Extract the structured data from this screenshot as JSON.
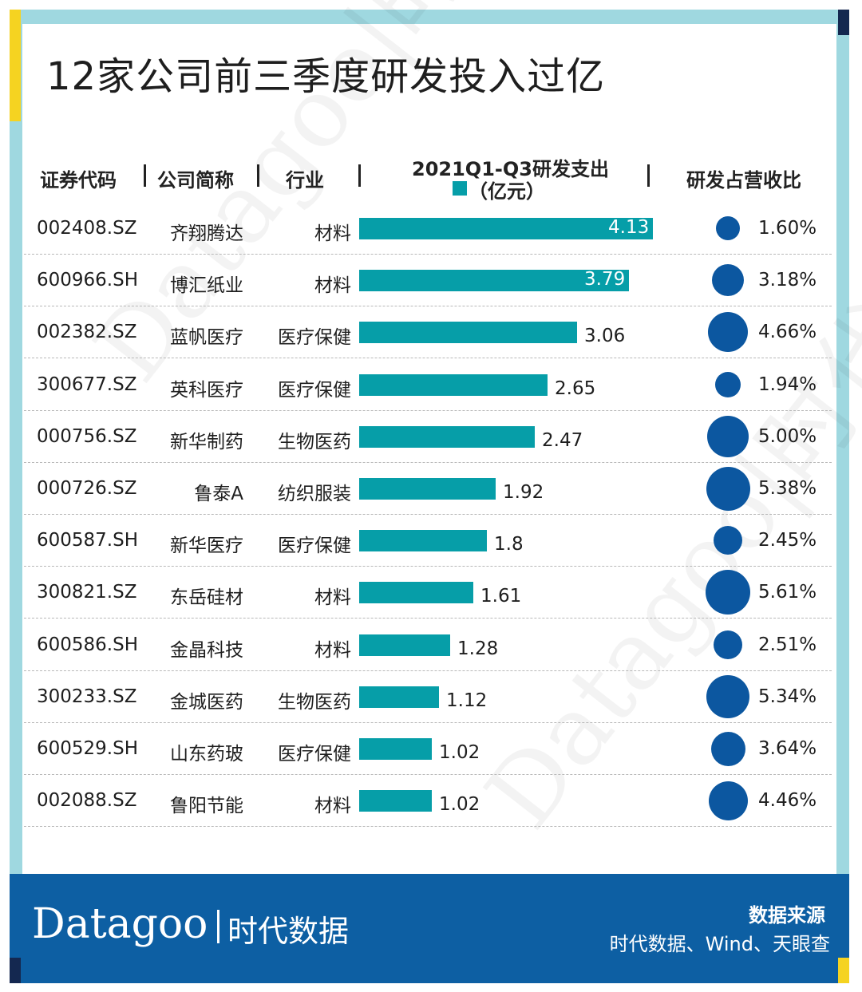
{
  "title": "12家公司前三季度研发投入过亿",
  "colors": {
    "bar": "#069ea8",
    "dot": "#0c57a0",
    "frame": "#9fd8e0",
    "footer": "#0d5fa3",
    "accent_yellow": "#f5d321",
    "accent_navy": "#142850"
  },
  "header": {
    "code": "证券代码",
    "name": "公司简称",
    "industry": "行业",
    "spend_title": "2021Q1-Q3研发支出",
    "spend_unit": "（亿元）",
    "ratio": "研发占营收比"
  },
  "chart_data": {
    "type": "bar",
    "title": "12家公司前三季度研发投入过亿",
    "series_name": "2021Q1-Q3研发支出（亿元）",
    "categories": [
      "齐翔腾达",
      "博汇纸业",
      "蓝帆医疗",
      "英科医疗",
      "新华制药",
      "鲁泰A",
      "新华医疗",
      "东岳硅材",
      "金晶科技",
      "金城医药",
      "山东药玻",
      "鲁阳节能"
    ],
    "values": [
      4.13,
      3.79,
      3.06,
      2.65,
      2.47,
      1.92,
      1.8,
      1.61,
      1.28,
      1.12,
      1.02,
      1.02
    ],
    "ylim": [
      0,
      4.13
    ],
    "secondary_series": {
      "name": "研发占营收比",
      "values": [
        1.6,
        3.18,
        4.66,
        1.94,
        5.0,
        5.38,
        2.45,
        5.61,
        2.51,
        5.34,
        3.64,
        4.46
      ],
      "unit": "%"
    }
  },
  "rows": [
    {
      "code": "002408.SZ",
      "name": "齐翔腾达",
      "industry": "材料",
      "value": "4.13",
      "ratio": "1.60%"
    },
    {
      "code": "600966.SH",
      "name": "博汇纸业",
      "industry": "材料",
      "value": "3.79",
      "ratio": "3.18%"
    },
    {
      "code": "002382.SZ",
      "name": "蓝帆医疗",
      "industry": "医疗保健",
      "value": "3.06",
      "ratio": "4.66%"
    },
    {
      "code": "300677.SZ",
      "name": "英科医疗",
      "industry": "医疗保健",
      "value": "2.65",
      "ratio": "1.94%"
    },
    {
      "code": "000756.SZ",
      "name": "新华制药",
      "industry": "生物医药",
      "value": "2.47",
      "ratio": "5.00%"
    },
    {
      "code": "000726.SZ",
      "name": "鲁泰A",
      "industry": "纺织服装",
      "value": "1.92",
      "ratio": "5.38%"
    },
    {
      "code": "600587.SH",
      "name": "新华医疗",
      "industry": "医疗保健",
      "value": "1.8",
      "ratio": "2.45%"
    },
    {
      "code": "300821.SZ",
      "name": "东岳硅材",
      "industry": "材料",
      "value": "1.61",
      "ratio": "5.61%"
    },
    {
      "code": "600586.SH",
      "name": "金晶科技",
      "industry": "材料",
      "value": "1.28",
      "ratio": "2.51%"
    },
    {
      "code": "300233.SZ",
      "name": "金城医药",
      "industry": "生物医药",
      "value": "1.12",
      "ratio": "5.34%"
    },
    {
      "code": "600529.SH",
      "name": "山东药玻",
      "industry": "医疗保健",
      "value": "1.02",
      "ratio": "3.64%"
    },
    {
      "code": "002088.SZ",
      "name": "鲁阳节能",
      "industry": "材料",
      "value": "1.02",
      "ratio": "4.46%"
    }
  ],
  "watermark": {
    "text": "Datagoo|时代数据"
  },
  "footer": {
    "logo": "Datagoo",
    "logo_cn": "时代数据",
    "source_label": "数据来源",
    "source_text": "时代数据、Wind、天眼查"
  }
}
